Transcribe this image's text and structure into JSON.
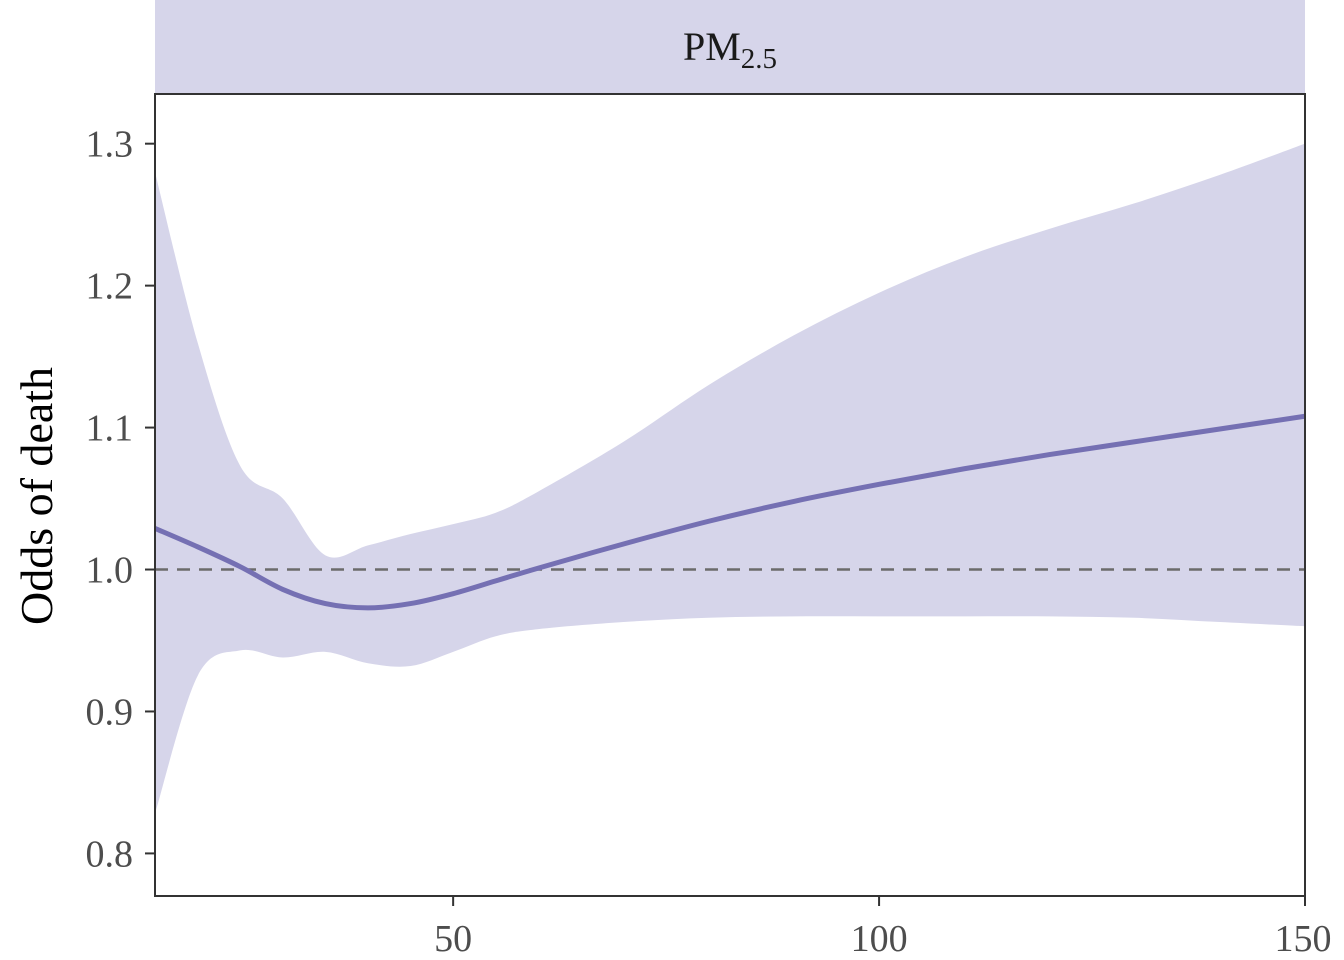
{
  "chart_data": {
    "type": "line",
    "panel_title": "PM",
    "panel_title_subscript": "2.5",
    "xlabel": "",
    "ylabel": "Odds of death",
    "xlim": [
      15,
      150
    ],
    "ylim": [
      0.77,
      1.335
    ],
    "x_ticks": [
      50,
      100,
      150
    ],
    "x_tick_labels": [
      "50",
      "100",
      "150"
    ],
    "y_ticks": [
      0.8,
      0.9,
      1.0,
      1.1,
      1.2,
      1.3
    ],
    "y_tick_labels": [
      "0.8",
      "0.9",
      "1.0",
      "1.1",
      "1.2",
      "1.3"
    ],
    "reference_line": 1.0,
    "grid": false,
    "colors": {
      "line": "#7570b3",
      "band": "#d6d5ea",
      "strip": "#d6d5ea",
      "reference": "#6b6b6b",
      "axis": "#333333"
    },
    "series": [
      {
        "x": [
          15,
          20,
          25,
          30,
          35,
          40,
          45,
          50,
          55,
          60,
          70,
          80,
          90,
          100,
          110,
          120,
          130,
          140,
          150
        ],
        "y": [
          1.029,
          1.016,
          1.002,
          0.986,
          0.976,
          0.973,
          0.976,
          0.983,
          0.992,
          1.001,
          1.018,
          1.034,
          1.048,
          1.06,
          1.071,
          1.081,
          1.09,
          1.099,
          1.108
        ],
        "lower": [
          0.828,
          0.925,
          0.943,
          0.938,
          0.942,
          0.934,
          0.932,
          0.942,
          0.953,
          0.958,
          0.963,
          0.966,
          0.967,
          0.967,
          0.967,
          0.967,
          0.966,
          0.963,
          0.96
        ],
        "upper": [
          1.28,
          1.16,
          1.073,
          1.05,
          1.01,
          1.017,
          1.025,
          1.032,
          1.04,
          1.055,
          1.09,
          1.13,
          1.165,
          1.195,
          1.22,
          1.24,
          1.258,
          1.278,
          1.3
        ]
      }
    ]
  }
}
